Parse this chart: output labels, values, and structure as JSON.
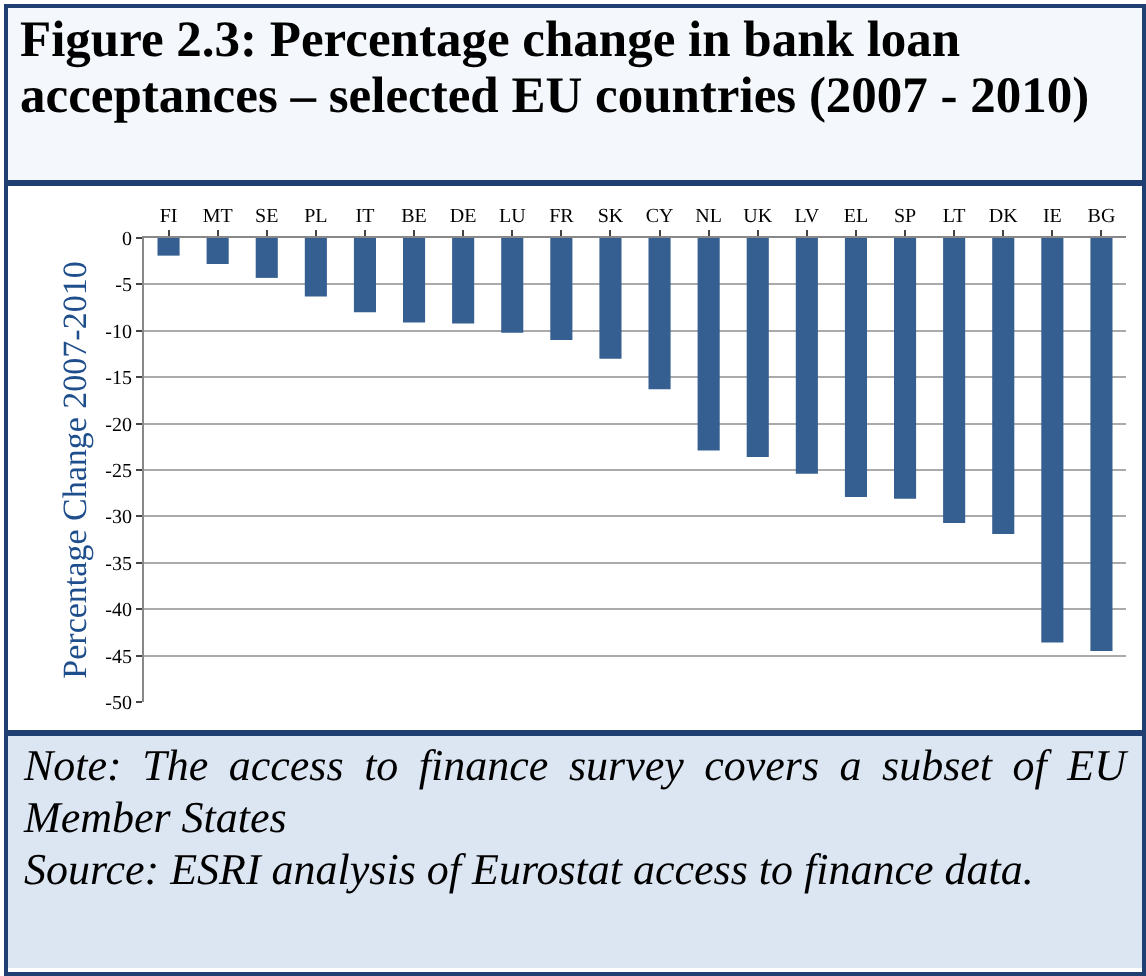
{
  "chart_data": {
    "type": "bar",
    "title": "Figure 2.3: Percentage change in bank loan acceptances – selected EU countries (2007 - 2010)",
    "ylabel": "Percentage Change 2007-2010",
    "categories": [
      "FI",
      "MT",
      "SE",
      "PL",
      "IT",
      "BE",
      "DE",
      "LU",
      "FR",
      "SK",
      "CY",
      "NL",
      "UK",
      "LV",
      "EL",
      "SP",
      "LT",
      "DK",
      "IE",
      "BG"
    ],
    "values": [
      -1.9,
      -2.8,
      -4.3,
      -6.3,
      -8.0,
      -9.1,
      -9.2,
      -10.2,
      -11.0,
      -13.0,
      -16.3,
      -22.9,
      -23.6,
      -25.4,
      -27.9,
      -28.1,
      -30.7,
      -31.9,
      -43.6,
      -44.5
    ],
    "color": "#365f91",
    "ylim": [
      -50,
      0
    ],
    "yticks": [
      0,
      -5,
      -10,
      -15,
      -20,
      -25,
      -30,
      -35,
      -40,
      -45,
      -50
    ],
    "grid": "y",
    "annotations": [
      "Note: The access to finance survey covers a subset of EU Member States",
      "Source: ESRI analysis of Eurostat access to finance data."
    ]
  }
}
